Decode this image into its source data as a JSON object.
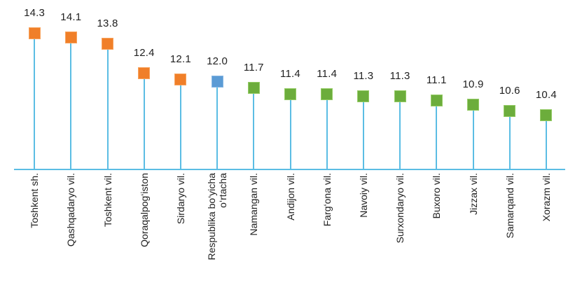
{
  "chart_data": {
    "type": "bar",
    "variant": "lollipop-square-markers",
    "title": "",
    "xlabel": "",
    "ylabel": "",
    "ylim": [
      7.8,
      15
    ],
    "grid": false,
    "legend": false,
    "data_labels": true,
    "value_decimals": 1,
    "categories": [
      "Toshkent sh.",
      "Qashqadaryo vil.",
      "Toshkent vil.",
      "Qoraqalpog‘iston",
      "Sirdaryo vil.",
      "Respublika bo‘yicha\no‘rtacha",
      "Namangan vil.",
      "Andijon vil.",
      "Farg‘ona vil.",
      "Navoiy vil.",
      "Surxondaryo vil.",
      "Buxoro vil.",
      "Jizzax vil.",
      "Samarqand vil.",
      "Xorazm vil."
    ],
    "values": [
      14.3,
      14.1,
      13.8,
      12.4,
      12.1,
      12.0,
      11.7,
      11.4,
      11.4,
      11.3,
      11.3,
      11.1,
      10.9,
      10.6,
      10.4
    ],
    "point_groups": [
      "orange",
      "orange",
      "orange",
      "orange",
      "orange",
      "blue",
      "green",
      "green",
      "green",
      "green",
      "green",
      "green",
      "green",
      "green",
      "green"
    ],
    "colors": {
      "orange": "#F07F29",
      "orange_border": "#F8A35D",
      "blue": "#5B9BD5",
      "blue_border": "#85B6E3",
      "green": "#6CAD3C",
      "green_border": "#95CC66",
      "stem": "#5BBDE4",
      "axis": "#5BBDE4",
      "text": "#212121"
    }
  }
}
